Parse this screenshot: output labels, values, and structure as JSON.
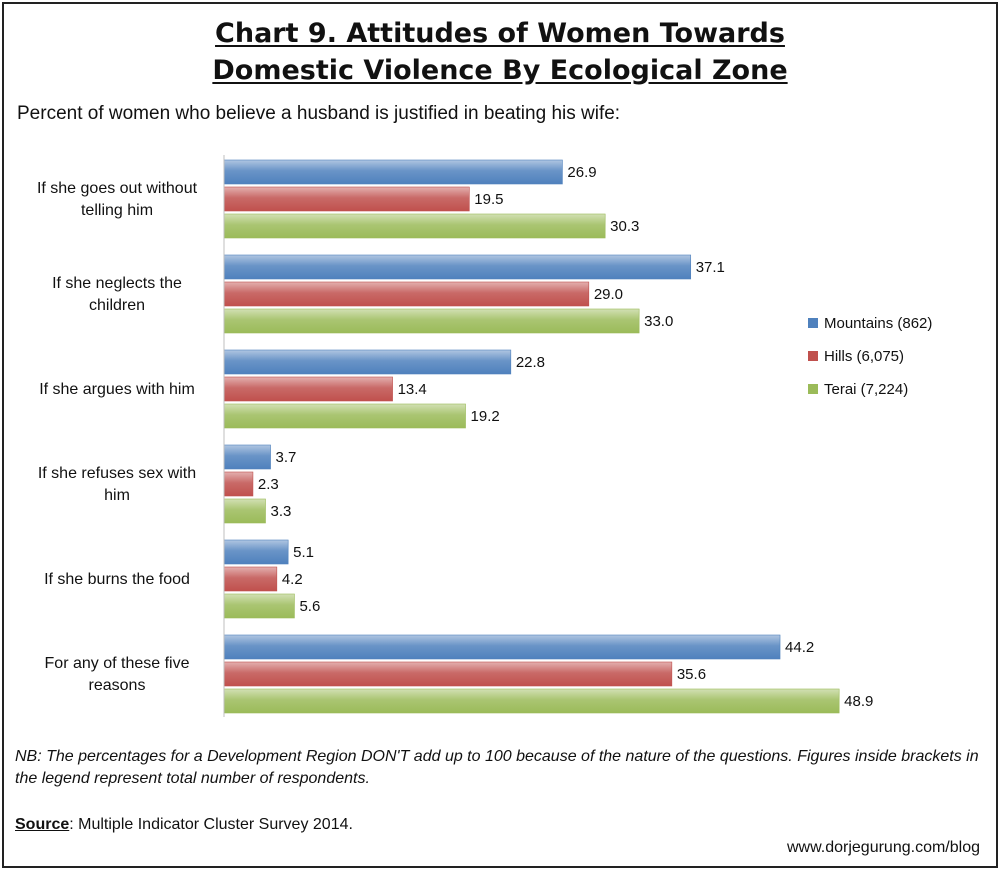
{
  "title_line1": "Chart 9. Attitudes of Women Towards",
  "title_line2": "Domestic Violence By Ecological Zone",
  "subtitle": "Percent of women who believe a husband is justified in beating his wife:",
  "note": "NB: The percentages for a Development Region DON'T add up to 100 because of the nature of the questions. Figures inside brackets in the legend represent total number of respondents.",
  "source_label": "Source",
  "source_text": ": Multiple Indicator Cluster Survey 2014.",
  "website": "www.dorjegurung.com/blog",
  "colors": {
    "mountains": "#4f81bd",
    "hills": "#c0504d",
    "terai": "#9bbb59"
  },
  "chart_data": {
    "type": "bar",
    "orientation": "horizontal",
    "categories": [
      [
        "If she goes out without",
        "telling him"
      ],
      [
        "If she neglects the",
        "children"
      ],
      [
        "If she argues with him"
      ],
      [
        "If she refuses sex with",
        "him"
      ],
      [
        "If she burns the food"
      ],
      [
        "For any of these five",
        "reasons"
      ]
    ],
    "series": [
      {
        "name": "Mountains (862)",
        "color": "#4f81bd",
        "values": [
          26.9,
          37.1,
          22.8,
          3.7,
          5.1,
          44.2
        ]
      },
      {
        "name": "Hills (6,075)",
        "color": "#c0504d",
        "values": [
          19.5,
          29.0,
          13.4,
          2.3,
          4.2,
          35.6
        ]
      },
      {
        "name": "Terai (7,224)",
        "color": "#9bbb59",
        "values": [
          30.3,
          33.0,
          19.2,
          3.3,
          5.6,
          48.9
        ]
      }
    ],
    "value_labels": [
      [
        "26.9",
        "37.1",
        "22.8",
        "3.7",
        "5.1",
        "44.2"
      ],
      [
        "19.5",
        "29.0",
        "13.4",
        "2.3",
        "4.2",
        "35.6"
      ],
      [
        "30.3",
        "33.0",
        "19.2",
        "3.3",
        "5.6",
        "48.9"
      ]
    ],
    "xlim": [
      0,
      50
    ],
    "grid": false,
    "legend_position": "right"
  }
}
